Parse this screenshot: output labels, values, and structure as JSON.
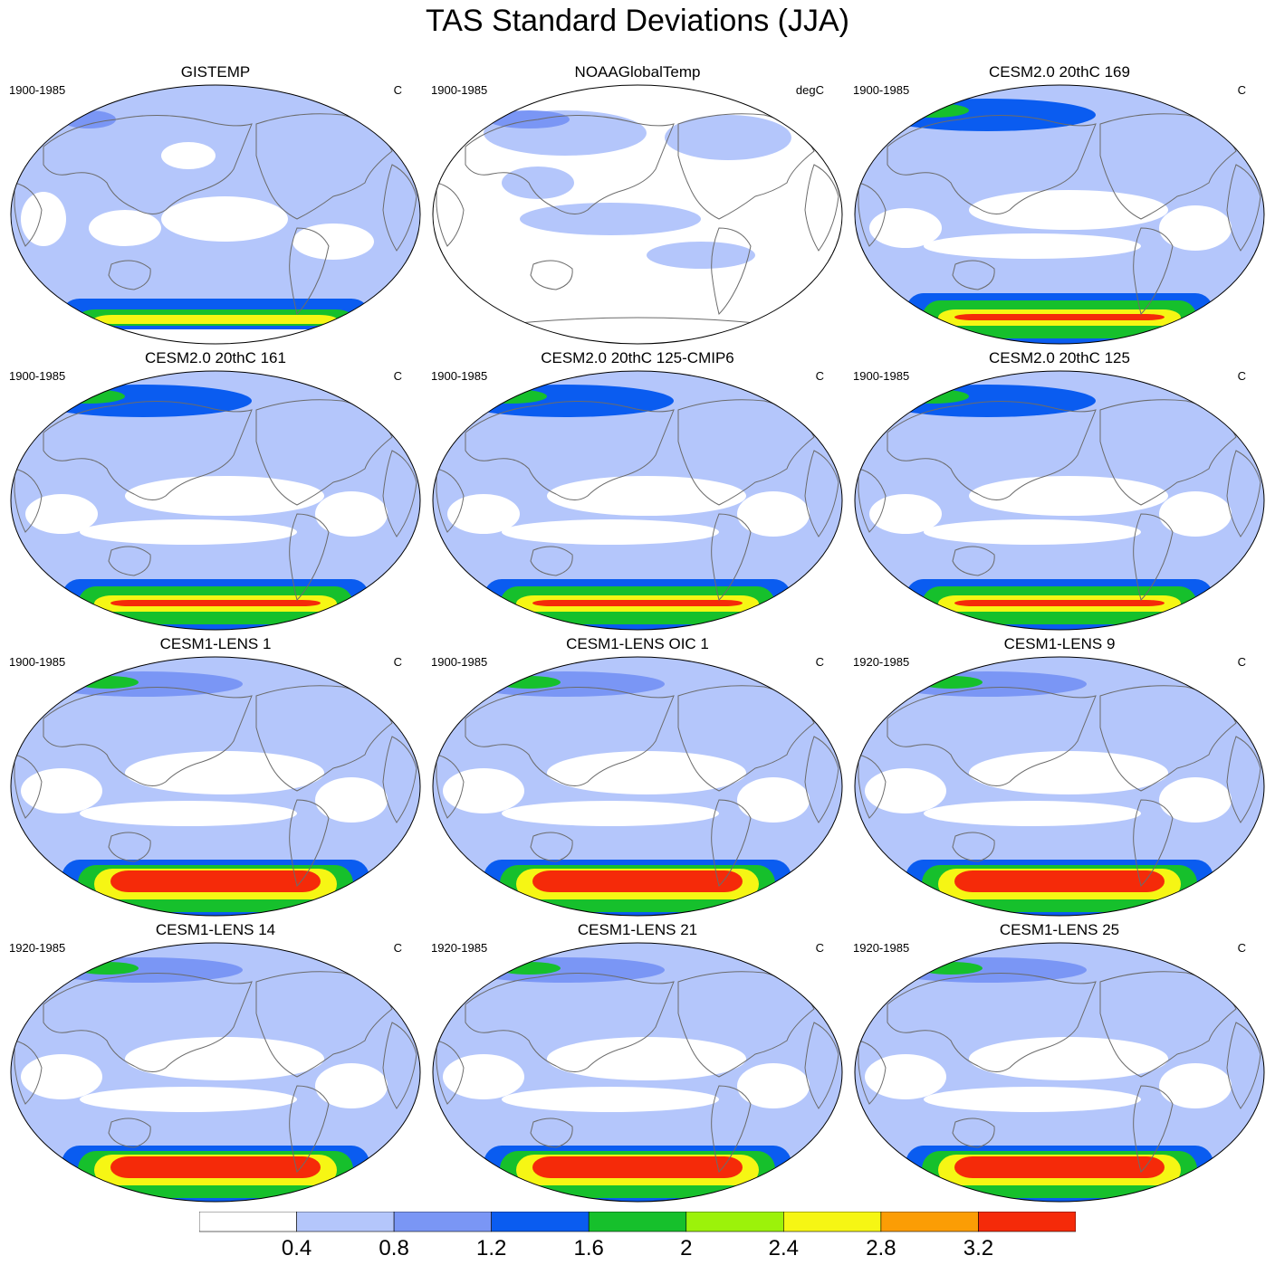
{
  "title": "TAS Standard Deviations (JJA)",
  "colors": {
    "white": "#ffffff",
    "c1": "#b4c6fb",
    "c2": "#7a96f5",
    "c3": "#0a5cf0",
    "c4": "#16c02c",
    "c5": "#9cf20a",
    "c6": "#f6f614",
    "c7": "#fb9d05",
    "c8": "#f52a09",
    "coast": "#6b6b6b"
  },
  "colorbar": {
    "labels": [
      "0.4",
      "0.8",
      "1.2",
      "1.6",
      "2",
      "2.4",
      "2.8",
      "3.2"
    ],
    "fills": [
      "#ffffff",
      "#b4c6fb",
      "#7a96f5",
      "#0a5cf0",
      "#16c02c",
      "#9cf20a",
      "#f6f614",
      "#fb9d05",
      "#f52a09"
    ]
  },
  "panels": [
    {
      "title": "GISTEMP",
      "period": "1900-1985",
      "units": "C",
      "type": "obs",
      "level": 1
    },
    {
      "title": "NOAAGlobalTemp",
      "period": "1900-1985",
      "units": "degC",
      "type": "noaa",
      "level": 0
    },
    {
      "title": "CESM2.0 20thC 169",
      "period": "1900-1985",
      "units": "C",
      "type": "cesm2",
      "level": 2
    },
    {
      "title": "CESM2.0 20thC 161",
      "period": "1900-1985",
      "units": "C",
      "type": "cesm2",
      "level": 2
    },
    {
      "title": "CESM2.0 20thC 125-CMIP6",
      "period": "1900-1985",
      "units": "C",
      "type": "cesm2",
      "level": 2
    },
    {
      "title": "CESM2.0 20thC 125",
      "period": "1900-1985",
      "units": "C",
      "type": "cesm2",
      "level": 2
    },
    {
      "title": "CESM1-LENS 1",
      "period": "1900-1985",
      "units": "C",
      "type": "lens",
      "level": 3
    },
    {
      "title": "CESM1-LENS OIC 1",
      "period": "1900-1985",
      "units": "C",
      "type": "lens",
      "level": 3
    },
    {
      "title": "CESM1-LENS 9",
      "period": "1920-1985",
      "units": "C",
      "type": "lens",
      "level": 3
    },
    {
      "title": "CESM1-LENS 14",
      "period": "1920-1985",
      "units": "C",
      "type": "lens",
      "level": 3
    },
    {
      "title": "CESM1-LENS 21",
      "period": "1920-1985",
      "units": "C",
      "type": "lens",
      "level": 3
    },
    {
      "title": "CESM1-LENS 25",
      "period": "1920-1985",
      "units": "C",
      "type": "lens",
      "level": 3
    }
  ]
}
